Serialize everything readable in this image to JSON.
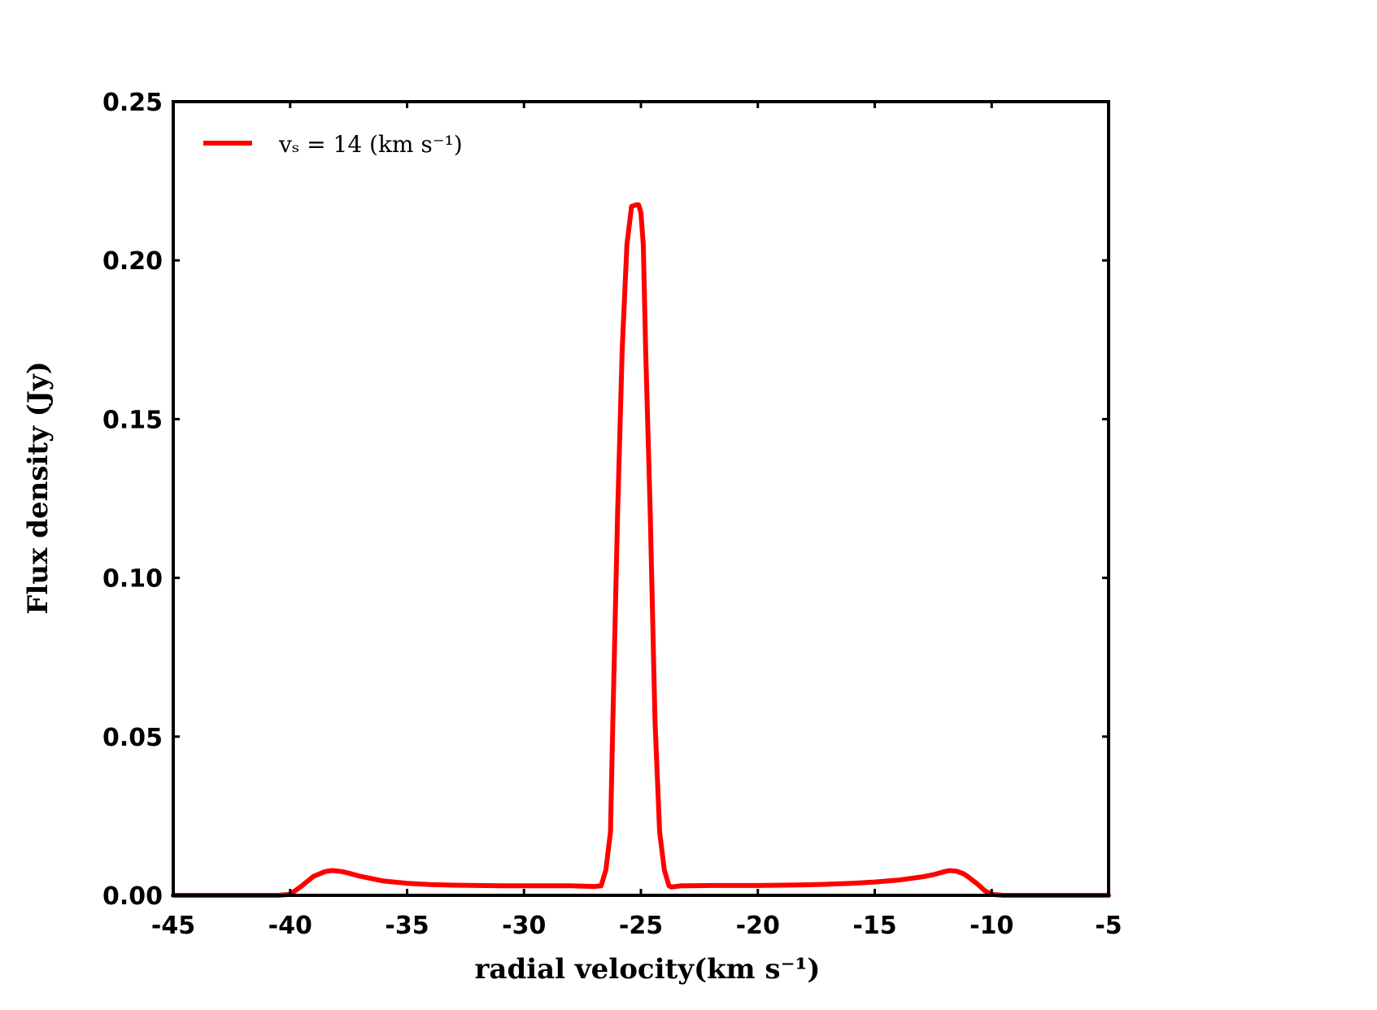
{
  "chart_data": {
    "type": "line",
    "xlabel": "radial velocity(km s⁻¹)",
    "ylabel": "Flux density (Jy)",
    "xlim": [
      -45,
      -5
    ],
    "ylim": [
      0,
      0.25
    ],
    "xticks": [
      -45,
      -40,
      -35,
      -30,
      -25,
      -20,
      -15,
      -10,
      -5
    ],
    "xtick_labels": [
      "-45",
      "-40",
      "-35",
      "-30",
      "-25",
      "-20",
      "-15",
      "-10",
      "-5"
    ],
    "yticks": [
      0,
      0.05,
      0.1,
      0.15,
      0.2,
      0.25
    ],
    "ytick_labels": [
      "0.00",
      "0.05",
      "0.10",
      "0.15",
      "0.20",
      "0.25"
    ],
    "grid": false,
    "legend_position": "top-left",
    "series": [
      {
        "name": "vₛ = 14 (km s⁻¹)",
        "color": "#ff0000",
        "x": [
          -45,
          -42,
          -40.5,
          -40,
          -39.5,
          -39,
          -38.5,
          -38.2,
          -37.8,
          -37.5,
          -37,
          -36,
          -35,
          -34,
          -33,
          -32,
          -31,
          -30,
          -29,
          -28,
          -27,
          -26.7,
          -26.5,
          -26.3,
          -26.2,
          -26.0,
          -25.8,
          -25.6,
          -25.4,
          -25.2,
          -25.1,
          -25.0,
          -24.9,
          -24.8,
          -24.6,
          -24.4,
          -24.2,
          -24.0,
          -23.8,
          -23.7,
          -23.5,
          -23.3,
          -23,
          -22,
          -21,
          -20,
          -19,
          -18,
          -17,
          -16,
          -15,
          -14,
          -13,
          -12.5,
          -12,
          -11.8,
          -11.5,
          -11.2,
          -11,
          -10.6,
          -10.3,
          -10,
          -9.5,
          -8,
          -5
        ],
        "y": [
          0,
          0,
          0,
          0.0003,
          0.003,
          0.006,
          0.0075,
          0.0078,
          0.0075,
          0.007,
          0.006,
          0.0045,
          0.0038,
          0.0034,
          0.0032,
          0.0031,
          0.003,
          0.003,
          0.003,
          0.003,
          0.0028,
          0.003,
          0.008,
          0.02,
          0.055,
          0.12,
          0.172,
          0.205,
          0.217,
          0.2175,
          0.2175,
          0.215,
          0.205,
          0.172,
          0.12,
          0.055,
          0.02,
          0.008,
          0.003,
          0.0026,
          0.0028,
          0.003,
          0.003,
          0.0031,
          0.0031,
          0.0031,
          0.0032,
          0.0033,
          0.0035,
          0.0038,
          0.0042,
          0.0048,
          0.0058,
          0.0065,
          0.0075,
          0.0078,
          0.0076,
          0.0068,
          0.0058,
          0.0035,
          0.0015,
          0.0003,
          0,
          0,
          0
        ]
      }
    ]
  }
}
